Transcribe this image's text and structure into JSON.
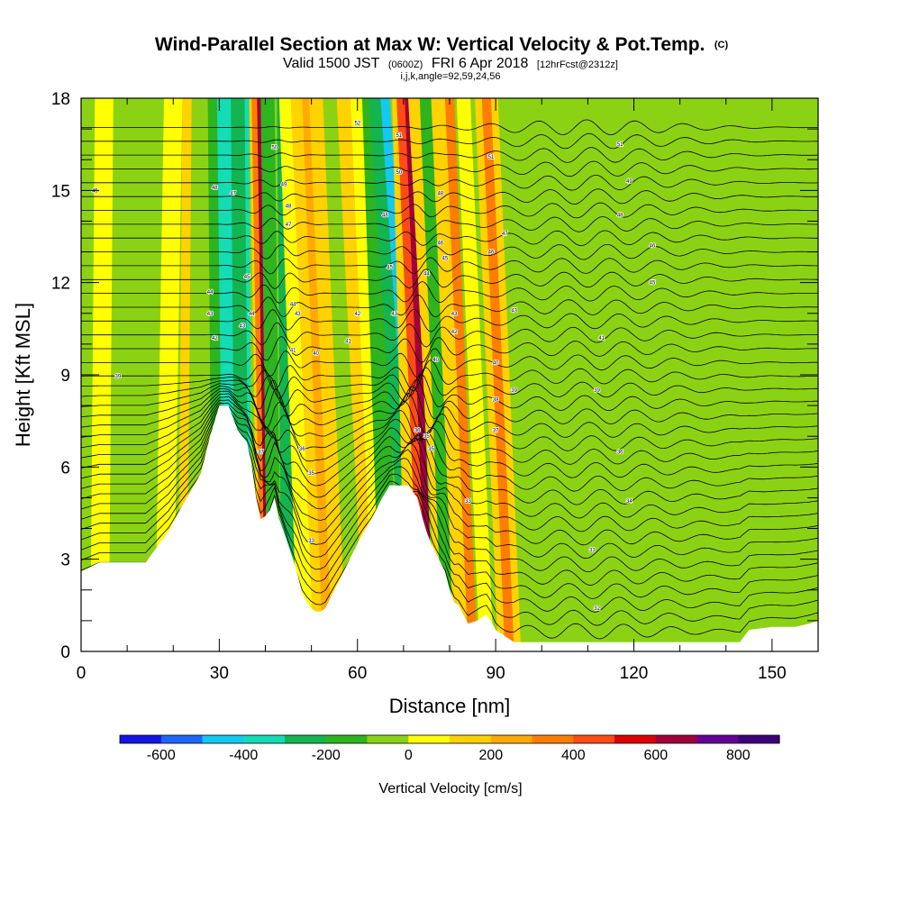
{
  "chart_data": {
    "type": "heatmap",
    "title": "Wind-Parallel Section at Max W: Vertical Velocity & Pot.Temp.",
    "title_suffix": "(C)",
    "subtitle": {
      "valid": "Valid 1500 JST",
      "utc": "(0600Z)",
      "date": "FRI 6 Apr 2018",
      "forecast": "[12hrFcst@2312z]"
    },
    "params": "i,j,k,angle=92,59,24,56",
    "xlabel": "Distance [nm]",
    "ylabel": "Height [Kft MSL]",
    "xlim": [
      0,
      160
    ],
    "ylim": [
      0,
      18
    ],
    "x_ticks": [
      "0",
      "30",
      "60",
      "90",
      "120",
      "150"
    ],
    "y_ticks": [
      "0",
      "3",
      "6",
      "9",
      "12",
      "15",
      "18"
    ],
    "x_tick_values": [
      0,
      30,
      60,
      90,
      120,
      150
    ],
    "y_tick_values": [
      0,
      3,
      6,
      9,
      12,
      15,
      18
    ],
    "colorbar": {
      "title": "Vertical Velocity [cm/s]",
      "tick_labels": [
        "-600",
        "-400",
        "-200",
        "0",
        "200",
        "400",
        "600",
        "800"
      ],
      "tick_values": [
        -600,
        -400,
        -200,
        0,
        200,
        400,
        600,
        800
      ],
      "levels": [
        -700,
        -600,
        -500,
        -400,
        -300,
        -200,
        -100,
        0,
        100,
        200,
        300,
        400,
        500,
        600,
        700,
        800,
        900
      ],
      "colors": [
        "#1414e6",
        "#1e64ff",
        "#14c8f0",
        "#14dcb4",
        "#14b450",
        "#2db41e",
        "#8cd214",
        "#ffff00",
        "#ffd200",
        "#ffaa00",
        "#ff7d00",
        "#ff4b14",
        "#dc0000",
        "#a0003c",
        "#640096",
        "#3c0078"
      ]
    },
    "terrain": {
      "x": [
        0,
        4,
        9,
        14,
        17,
        19,
        21,
        23,
        26,
        28,
        30,
        32,
        34,
        36,
        37,
        38,
        39,
        40,
        41,
        42,
        43,
        44,
        46,
        47,
        48,
        49,
        50,
        51,
        52,
        53,
        55,
        57,
        59,
        61,
        63,
        65,
        67,
        69,
        71,
        73,
        74,
        75,
        76,
        77,
        78,
        79,
        80,
        81,
        82,
        83,
        84,
        86,
        88,
        89,
        90,
        92,
        94,
        96,
        100,
        110,
        120,
        130,
        143,
        145,
        150,
        155,
        158,
        160
      ],
      "height_kft": [
        2.6,
        2.9,
        2.9,
        2.9,
        3.5,
        3.9,
        4.5,
        5.0,
        5.8,
        7.0,
        8.0,
        8.0,
        7.2,
        6.8,
        6.1,
        5.0,
        4.3,
        4.4,
        4.6,
        5.0,
        4.3,
        3.9,
        3.0,
        2.5,
        1.9,
        1.6,
        1.4,
        1.3,
        1.3,
        1.4,
        2.0,
        2.6,
        3.2,
        3.8,
        4.3,
        4.9,
        5.4,
        5.4,
        5.4,
        5.0,
        4.4,
        3.9,
        3.5,
        3.2,
        2.9,
        2.6,
        2.0,
        1.6,
        1.5,
        1.2,
        0.9,
        1.0,
        1.2,
        1.0,
        0.7,
        0.5,
        0.3,
        0.3,
        0.3,
        0.3,
        0.3,
        0.3,
        0.3,
        0.7,
        0.8,
        0.8,
        0.9,
        1.0
      ]
    },
    "velocity_bands": [
      {
        "x_base": 1,
        "w_base": 3,
        "x_top": 2,
        "w_top": 3,
        "value": -100
      },
      {
        "x_base": 4,
        "w_base": 4,
        "x_top": 5,
        "w_top": 4,
        "value": 50
      },
      {
        "x_base": 11,
        "w_base": 5,
        "x_top": 12,
        "w_top": 5,
        "value": -100
      },
      {
        "x_base": 18,
        "w_base": 4,
        "x_top": 20,
        "w_top": 4,
        "value": 50
      },
      {
        "x_base": 22,
        "w_base": 2,
        "x_top": 23,
        "w_top": 2,
        "value": 150
      },
      {
        "x_base": 25,
        "w_base": 3,
        "x_top": 27,
        "w_top": 4,
        "value": -100
      },
      {
        "x_base": 30,
        "w_base": 3,
        "x_top": 29,
        "w_top": 3,
        "value": -200
      },
      {
        "x_base": 34,
        "w_base": 6,
        "x_top": 33,
        "w_top": 7,
        "value": -400
      },
      {
        "x_base": 35,
        "w_base": 3,
        "x_top": 34,
        "w_top": 3,
        "value": -300
      },
      {
        "x_base": 39,
        "w_base": 1,
        "x_top": 37,
        "w_top": 1,
        "value": 150
      },
      {
        "x_base": 40,
        "w_base": 2,
        "x_top": 38,
        "w_top": 2,
        "value": 350
      },
      {
        "x_base": 40.5,
        "w_base": 1,
        "x_top": 38.7,
        "w_top": 1,
        "value": 650
      },
      {
        "x_base": 41.5,
        "w_base": 2,
        "x_top": 40,
        "w_top": 2,
        "value": 450
      },
      {
        "x_base": 42,
        "w_base": 3,
        "x_top": 40.5,
        "w_top": 3,
        "value": -200
      },
      {
        "x_base": 45,
        "w_base": 3,
        "x_top": 44,
        "w_top": 3,
        "value": -300
      },
      {
        "x_base": 49,
        "w_base": 4,
        "x_top": 45,
        "w_top": 4,
        "value": 50
      },
      {
        "x_base": 52,
        "w_base": 3,
        "x_top": 47,
        "w_top": 3,
        "value": 150
      },
      {
        "x_base": 54,
        "w_base": 3,
        "x_top": 49,
        "w_top": 2,
        "value": 250
      },
      {
        "x_base": 56,
        "w_base": 3,
        "x_top": 51,
        "w_top": 3,
        "value": 150
      },
      {
        "x_base": 60,
        "w_base": 5,
        "x_top": 55,
        "w_top": 5,
        "value": -100
      },
      {
        "x_base": 63,
        "w_base": 3,
        "x_top": 57,
        "w_top": 3,
        "value": 150
      },
      {
        "x_base": 65,
        "w_base": 3,
        "x_top": 60,
        "w_top": 3,
        "value": 50
      },
      {
        "x_base": 67,
        "w_base": 4,
        "x_top": 63,
        "w_top": 4,
        "value": -200
      },
      {
        "x_base": 72,
        "w_base": 3,
        "x_top": 64,
        "w_top": 3,
        "value": -300
      },
      {
        "x_base": 74,
        "w_base": 2,
        "x_top": 66,
        "w_top": 2,
        "value": -500
      },
      {
        "x_base": 72,
        "w_base": 3,
        "x_top": 69,
        "w_top": 3,
        "value": 150
      },
      {
        "x_base": 75,
        "w_base": 3,
        "x_top": 70,
        "w_top": 3,
        "value": 450
      },
      {
        "x_base": 76,
        "w_base": 1.5,
        "x_top": 71,
        "w_top": 1.5,
        "value": 650
      },
      {
        "x_base": 79,
        "w_base": 3,
        "x_top": 72.5,
        "w_top": 3,
        "value": 150
      },
      {
        "x_base": 80,
        "w_base": 3,
        "x_top": 75,
        "w_top": 3,
        "value": -200
      },
      {
        "x_base": 83,
        "w_base": 4,
        "x_top": 78,
        "w_top": 4,
        "value": 150
      },
      {
        "x_base": 85,
        "w_base": 2,
        "x_top": 80,
        "w_top": 2,
        "value": 350
      },
      {
        "x_base": 88,
        "w_base": 3,
        "x_top": 83,
        "w_top": 3,
        "value": 50
      },
      {
        "x_base": 92,
        "w_base": 3,
        "x_top": 87,
        "w_top": 3,
        "value": 150
      },
      {
        "x_base": 93,
        "w_base": 2,
        "x_top": 88,
        "w_top": 2,
        "value": 350
      },
      {
        "x_base": 95,
        "w_base": 2,
        "x_top": 90,
        "w_top": 2,
        "value": 150
      },
      {
        "x_base": 97,
        "w_base": 3,
        "x_top": 92,
        "w_top": 3,
        "value": -100
      },
      {
        "x_base": 101,
        "w_base": 3,
        "x_top": 96,
        "w_top": 3,
        "value": -100
      },
      {
        "x_base": 105,
        "w_base": 3,
        "x_top": 100,
        "w_top": 3,
        "value": -100
      },
      {
        "x_base": 110,
        "w_base": 2,
        "x_top": 104,
        "w_top": 2,
        "value": -100
      },
      {
        "x_base": 113,
        "w_base": 2,
        "x_top": 109,
        "w_top": 2,
        "value": -100
      },
      {
        "x_base": 117,
        "w_base": 3,
        "x_top": 113,
        "w_top": 2,
        "value": -100
      },
      {
        "x_base": 122,
        "w_base": 3,
        "x_top": 118,
        "w_top": 2,
        "value": -100
      },
      {
        "x_base": 128,
        "w_base": 3,
        "x_top": 124,
        "w_top": 2,
        "value": -100
      },
      {
        "x_base": 133,
        "w_base": 3,
        "x_top": 130,
        "w_top": 2,
        "value": -100
      },
      {
        "x_base": 139,
        "w_base": 3,
        "x_top": 136,
        "w_top": 2,
        "value": -100
      },
      {
        "x_base": 144,
        "w_base": 3,
        "x_top": 141,
        "w_top": 2,
        "value": -100
      },
      {
        "x_base": 149,
        "w_base": 3,
        "x_top": 147,
        "w_top": 2,
        "value": -100
      },
      {
        "x_base": 155,
        "w_base": 3,
        "x_top": 153,
        "w_top": 2,
        "value": -100
      }
    ],
    "isentropes": {
      "count": 38,
      "spacing_kft": 0.45
    },
    "contour_labels": [
      {
        "x": 3,
        "y": 15.0,
        "text": "45"
      },
      {
        "x": 8,
        "y": 8.95,
        "text": "39"
      },
      {
        "x": 29,
        "y": 15.1,
        "text": "48"
      },
      {
        "x": 28,
        "y": 11.7,
        "text": "44"
      },
      {
        "x": 28,
        "y": 11.0,
        "text": "43"
      },
      {
        "x": 29,
        "y": 10.2,
        "text": "42"
      },
      {
        "x": 33,
        "y": 14.9,
        "text": "47"
      },
      {
        "x": 36,
        "y": 12.2,
        "text": "45"
      },
      {
        "x": 35,
        "y": 10.6,
        "text": "43"
      },
      {
        "x": 37,
        "y": 11.0,
        "text": "44"
      },
      {
        "x": 42,
        "y": 16.4,
        "text": "50"
      },
      {
        "x": 39,
        "y": 6.5,
        "text": "37"
      },
      {
        "x": 44,
        "y": 15.2,
        "text": "49"
      },
      {
        "x": 45,
        "y": 14.5,
        "text": "48"
      },
      {
        "x": 45,
        "y": 13.9,
        "text": "47"
      },
      {
        "x": 46,
        "y": 11.3,
        "text": "44"
      },
      {
        "x": 47,
        "y": 11.0,
        "text": "43"
      },
      {
        "x": 46,
        "y": 9.8,
        "text": "41"
      },
      {
        "x": 48,
        "y": 6.6,
        "text": "36"
      },
      {
        "x": 50,
        "y": 5.8,
        "text": "35"
      },
      {
        "x": 51,
        "y": 9.7,
        "text": "40"
      },
      {
        "x": 50,
        "y": 3.6,
        "text": "33"
      },
      {
        "x": 58,
        "y": 10.1,
        "text": "41"
      },
      {
        "x": 60,
        "y": 11.0,
        "text": "42"
      },
      {
        "x": 60,
        "y": 17.2,
        "text": "52"
      },
      {
        "x": 66,
        "y": 14.2,
        "text": "48"
      },
      {
        "x": 67,
        "y": 12.5,
        "text": "45"
      },
      {
        "x": 68,
        "y": 11.0,
        "text": "43"
      },
      {
        "x": 69,
        "y": 16.8,
        "text": "51"
      },
      {
        "x": 69,
        "y": 15.6,
        "text": "50"
      },
      {
        "x": 73,
        "y": 7.2,
        "text": "36"
      },
      {
        "x": 75,
        "y": 7.0,
        "text": "35"
      },
      {
        "x": 76,
        "y": 6.6,
        "text": "35"
      },
      {
        "x": 77,
        "y": 9.5,
        "text": "40"
      },
      {
        "x": 78,
        "y": 14.9,
        "text": "48"
      },
      {
        "x": 78,
        "y": 13.3,
        "text": "46"
      },
      {
        "x": 79,
        "y": 12.8,
        "text": "45"
      },
      {
        "x": 75,
        "y": 12.3,
        "text": "44"
      },
      {
        "x": 81,
        "y": 11.0,
        "text": "43"
      },
      {
        "x": 81,
        "y": 10.4,
        "text": "42"
      },
      {
        "x": 84,
        "y": 4.9,
        "text": "33"
      },
      {
        "x": 89,
        "y": 16.1,
        "text": "51"
      },
      {
        "x": 89,
        "y": 13.0,
        "text": "46"
      },
      {
        "x": 90,
        "y": 9.4,
        "text": "40"
      },
      {
        "x": 90,
        "y": 8.2,
        "text": "38"
      },
      {
        "x": 90,
        "y": 7.2,
        "text": "37"
      },
      {
        "x": 92,
        "y": 13.6,
        "text": "47"
      },
      {
        "x": 94,
        "y": 8.5,
        "text": "39"
      },
      {
        "x": 94,
        "y": 11.1,
        "text": "43"
      },
      {
        "x": 111,
        "y": 3.3,
        "text": "33"
      },
      {
        "x": 112,
        "y": 1.4,
        "text": "32"
      },
      {
        "x": 113,
        "y": 10.2,
        "text": "41"
      },
      {
        "x": 112,
        "y": 8.5,
        "text": "39"
      },
      {
        "x": 117,
        "y": 16.5,
        "text": "51"
      },
      {
        "x": 119,
        "y": 15.3,
        "text": "49"
      },
      {
        "x": 117,
        "y": 14.2,
        "text": "48"
      },
      {
        "x": 117,
        "y": 6.5,
        "text": "36"
      },
      {
        "x": 119,
        "y": 4.9,
        "text": "34"
      },
      {
        "x": 124,
        "y": 13.2,
        "text": "46"
      },
      {
        "x": 124,
        "y": 12.0,
        "text": "45"
      }
    ]
  }
}
